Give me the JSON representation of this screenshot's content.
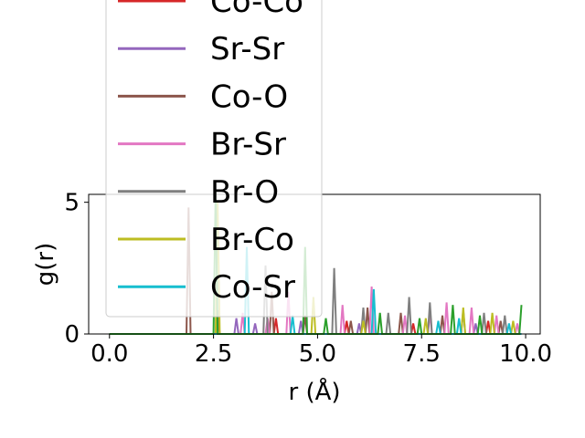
{
  "chart_data": {
    "type": "line",
    "title": "",
    "xlabel": "r (Å)",
    "ylabel": "g(r)",
    "xlim": [
      -0.5,
      10.35
    ],
    "ylim": [
      0,
      5.3
    ],
    "xticks": [
      0.0,
      2.5,
      5.0,
      7.5,
      10.0
    ],
    "xtick_labels": [
      "0.0",
      "2.5",
      "5.0",
      "7.5",
      "10.0"
    ],
    "yticks": [
      0,
      5
    ],
    "ytick_labels": [
      "0",
      "5"
    ],
    "grid": false,
    "legend_placement": "upper-left, overflowing above plot",
    "series": [
      {
        "name": "Co-Co",
        "color": "#d62728",
        "peaks": [
          [
            2.6,
            0.9
          ],
          [
            4.0,
            0.6
          ],
          [
            5.7,
            0.5
          ],
          [
            7.3,
            0.4
          ],
          [
            9.1,
            0.5
          ]
        ]
      },
      {
        "name": "Sr-Sr",
        "color": "#9467bd",
        "peaks": [
          [
            3.05,
            0.6
          ],
          [
            3.5,
            0.4
          ],
          [
            4.6,
            0.5
          ],
          [
            6.0,
            0.4
          ],
          [
            8.8,
            0.4
          ]
        ]
      },
      {
        "name": "Co-O",
        "color": "#8c564b",
        "peaks": [
          [
            1.9,
            4.8
          ],
          [
            3.9,
            1.6
          ],
          [
            4.7,
            0.7
          ],
          [
            5.8,
            0.5
          ],
          [
            6.2,
            1.0
          ],
          [
            7.0,
            0.8
          ],
          [
            8.0,
            0.7
          ],
          [
            9.4,
            0.5
          ]
        ]
      },
      {
        "name": "Br-Sr",
        "color": "#e377c2",
        "peaks": [
          [
            3.2,
            0.8
          ],
          [
            3.8,
            0.6
          ],
          [
            4.3,
            1.6
          ],
          [
            5.6,
            1.1
          ],
          [
            6.3,
            1.8
          ],
          [
            7.1,
            0.7
          ],
          [
            7.7,
            0.8
          ],
          [
            8.1,
            1.2
          ],
          [
            8.7,
            1.0
          ],
          [
            9.3,
            0.7
          ],
          [
            9.8,
            0.4
          ]
        ]
      },
      {
        "name": "Br-O",
        "color": "#7f7f7f",
        "peaks": [
          [
            3.75,
            2.6
          ],
          [
            5.4,
            2.5
          ],
          [
            6.1,
            1.0
          ],
          [
            6.7,
            0.8
          ],
          [
            7.2,
            1.4
          ],
          [
            7.7,
            1.2
          ],
          [
            8.5,
            0.9
          ],
          [
            9.0,
            0.8
          ],
          [
            9.5,
            0.7
          ]
        ]
      },
      {
        "name": "Br-Co",
        "color": "#bcbd22",
        "peaks": [
          [
            2.6,
            5.0
          ],
          [
            4.9,
            1.4
          ],
          [
            6.1,
            0.5
          ],
          [
            7.6,
            0.6
          ],
          [
            8.5,
            1.0
          ],
          [
            9.2,
            0.8
          ],
          [
            9.7,
            0.5
          ]
        ]
      },
      {
        "name": "Co-Sr",
        "color": "#17becf",
        "peaks": [
          [
            3.3,
            3.3
          ],
          [
            4.4,
            0.7
          ],
          [
            6.35,
            1.7
          ],
          [
            7.9,
            0.5
          ],
          [
            8.4,
            0.6
          ],
          [
            9.6,
            0.4
          ]
        ]
      },
      {
        "name": "",
        "color": "#2ca02c",
        "peaks": [
          [
            2.55,
            5.4
          ],
          [
            4.7,
            3.3
          ],
          [
            5.2,
            0.6
          ],
          [
            6.5,
            0.8
          ],
          [
            7.45,
            0.6
          ],
          [
            8.25,
            1.1
          ],
          [
            8.9,
            0.7
          ],
          [
            9.9,
            1.1
          ]
        ]
      }
    ]
  }
}
